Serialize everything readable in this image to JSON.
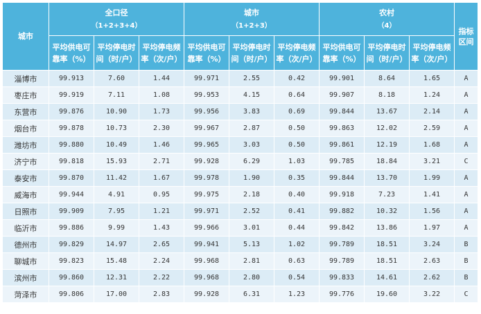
{
  "header": {
    "city_col": "城市",
    "level_col": "指标\n区间",
    "groups": [
      {
        "title": "全口径",
        "sub": "（1+2+3+4）"
      },
      {
        "title": "城市",
        "sub": "（1+2+3）"
      },
      {
        "title": "农村",
        "sub": "（4）"
      }
    ],
    "metrics": [
      "平均供电可\n靠率（%）",
      "平均停电时\n间（时/户）",
      "平均停电频\n率（次/户）"
    ]
  },
  "rows": [
    {
      "city": "淄博市",
      "v": [
        "99.913",
        "7.60",
        "1.44",
        "99.971",
        "2.55",
        "0.42",
        "99.901",
        "8.64",
        "1.65"
      ],
      "level": "A"
    },
    {
      "city": "枣庄市",
      "v": [
        "99.919",
        "7.11",
        "1.08",
        "99.953",
        "4.15",
        "0.64",
        "99.907",
        "8.18",
        "1.24"
      ],
      "level": "A"
    },
    {
      "city": "东营市",
      "v": [
        "99.876",
        "10.90",
        "1.73",
        "99.956",
        "3.83",
        "0.69",
        "99.844",
        "13.67",
        "2.14"
      ],
      "level": "A"
    },
    {
      "city": "烟台市",
      "v": [
        "99.878",
        "10.73",
        "2.30",
        "99.967",
        "2.87",
        "0.50",
        "99.863",
        "12.02",
        "2.59"
      ],
      "level": "A"
    },
    {
      "city": "潍坊市",
      "v": [
        "99.880",
        "10.49",
        "1.46",
        "99.965",
        "3.03",
        "0.50",
        "99.861",
        "12.19",
        "1.68"
      ],
      "level": "A"
    },
    {
      "city": "济宁市",
      "v": [
        "99.818",
        "15.93",
        "2.71",
        "99.928",
        "6.29",
        "1.03",
        "99.785",
        "18.84",
        "3.21"
      ],
      "level": "C"
    },
    {
      "city": "泰安市",
      "v": [
        "99.870",
        "11.42",
        "1.67",
        "99.978",
        "1.90",
        "0.35",
        "99.844",
        "13.70",
        "1.99"
      ],
      "level": "A"
    },
    {
      "city": "威海市",
      "v": [
        "99.944",
        "4.91",
        "0.95",
        "99.975",
        "2.18",
        "0.40",
        "99.918",
        "7.23",
        "1.41"
      ],
      "level": "A"
    },
    {
      "city": "日照市",
      "v": [
        "99.909",
        "7.95",
        "1.21",
        "99.971",
        "2.52",
        "0.41",
        "99.882",
        "10.32",
        "1.56"
      ],
      "level": "A"
    },
    {
      "city": "临沂市",
      "v": [
        "99.886",
        "9.99",
        "1.43",
        "99.966",
        "3.01",
        "0.44",
        "99.842",
        "13.86",
        "1.97"
      ],
      "level": "A"
    },
    {
      "city": "德州市",
      "v": [
        "99.829",
        "14.97",
        "2.65",
        "99.941",
        "5.13",
        "1.02",
        "99.789",
        "18.51",
        "3.24"
      ],
      "level": "B"
    },
    {
      "city": "聊城市",
      "v": [
        "99.823",
        "15.48",
        "2.24",
        "99.968",
        "2.81",
        "0.63",
        "99.789",
        "18.51",
        "2.63"
      ],
      "level": "B"
    },
    {
      "city": "滨州市",
      "v": [
        "99.860",
        "12.31",
        "2.22",
        "99.968",
        "2.80",
        "0.54",
        "99.833",
        "14.61",
        "2.62"
      ],
      "level": "B"
    },
    {
      "city": "菏泽市",
      "v": [
        "99.806",
        "17.00",
        "2.83",
        "99.928",
        "6.31",
        "1.23",
        "99.776",
        "19.60",
        "3.22"
      ],
      "level": "C"
    }
  ]
}
